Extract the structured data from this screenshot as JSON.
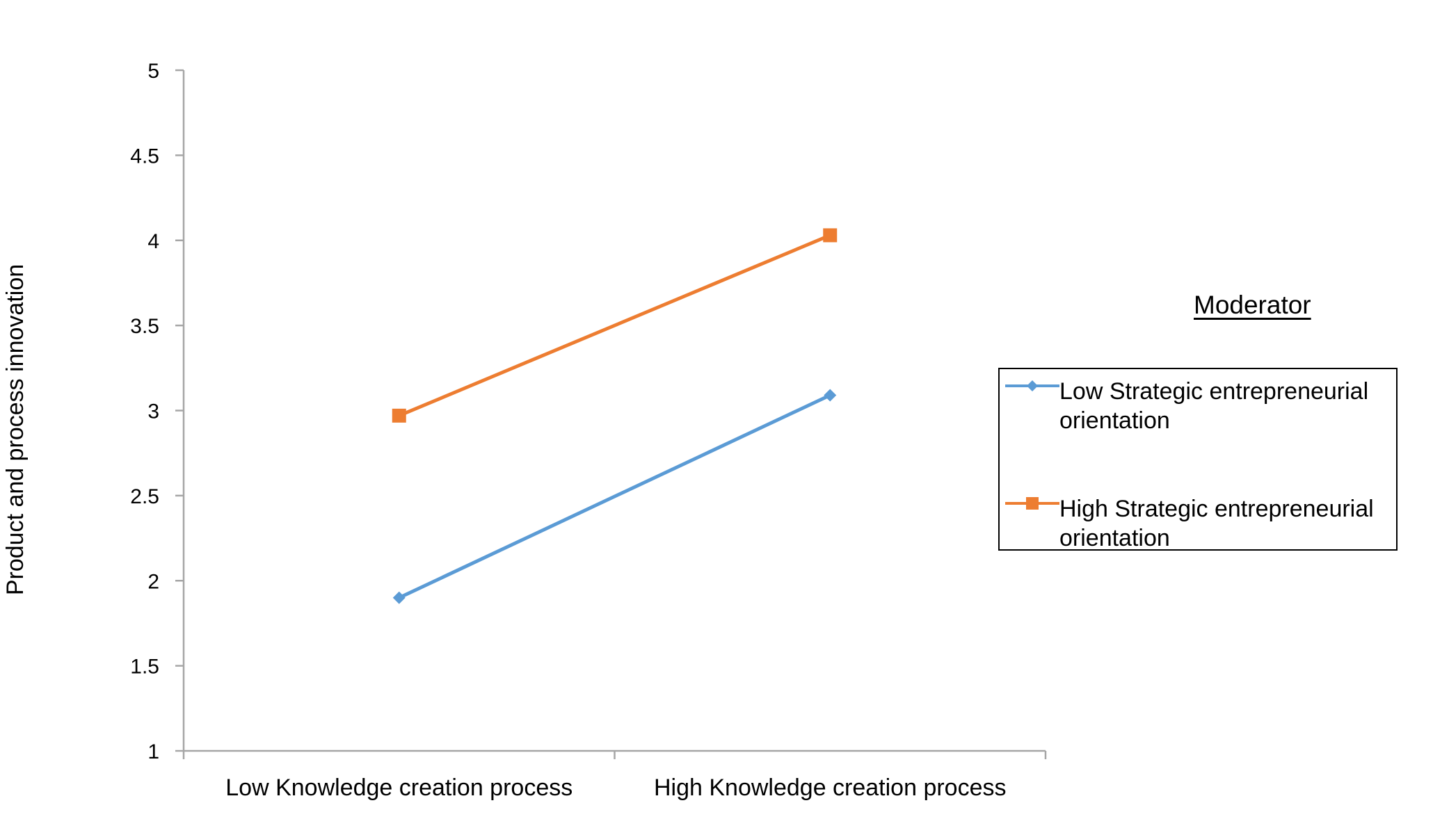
{
  "chart_data": {
    "type": "line",
    "title": "",
    "xlabel": "",
    "ylabel": "Product and process innovation",
    "categories": [
      "Low Knowledge creation process",
      "High Knowledge creation process"
    ],
    "ylim": [
      1,
      5
    ],
    "yticks": [
      "1",
      "1.5",
      "2",
      "2.5",
      "3",
      "3.5",
      "4",
      "4.5",
      "5"
    ],
    "grid": false,
    "legend": {
      "title": "Moderator",
      "placement": "right"
    },
    "series": [
      {
        "name": "Low Strategic entrepreneurial orientation",
        "values": [
          1.9,
          3.09
        ],
        "color": "#5b9bd5",
        "marker": "diamond"
      },
      {
        "name": "High Strategic entrepreneurial orientation",
        "values": [
          2.97,
          4.03
        ],
        "color": "#ed7d31",
        "marker": "square"
      }
    ]
  }
}
